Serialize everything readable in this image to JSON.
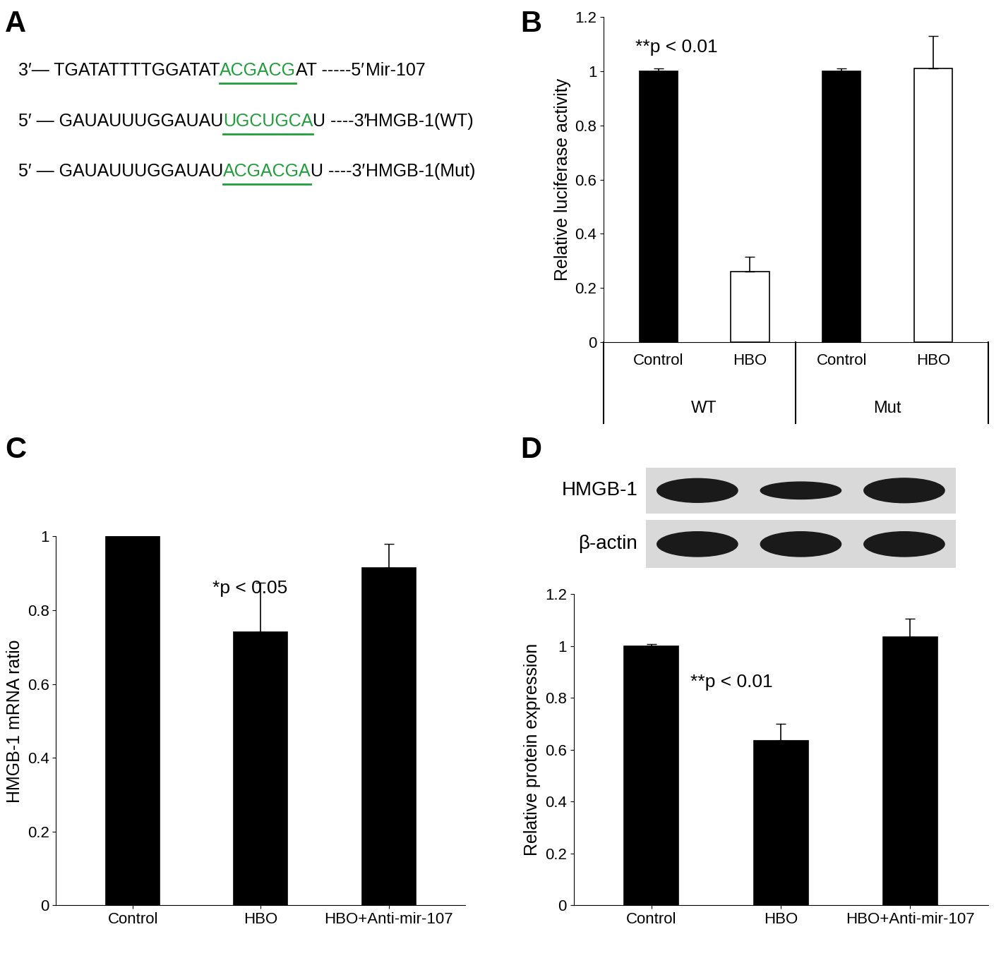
{
  "panel_a": {
    "label": "A",
    "rows": [
      {
        "left": "3′— TGATATTTTGGATAT",
        "match": "ACGACG",
        "right": "AT -----5′",
        "name": "Mir-107"
      },
      {
        "left": "5′ — GAUAUUUGGAUAU",
        "match": "UGCUGCA",
        "right": "U ----3′",
        "name": "HMGB-1(WT)"
      },
      {
        "left": "5′ — GAUAUUUGGAUAU",
        "match": "ACGACGA",
        "right": "U ----3′",
        "name": "HMGB-1(Mut)"
      }
    ],
    "color": "#1f9e3a"
  },
  "chart_data": [
    {
      "panel": "B",
      "type": "bar",
      "categories": [
        "Control",
        "HBO",
        "Control",
        "HBO"
      ],
      "groups": [
        "WT",
        "Mut"
      ],
      "values": [
        1.0,
        0.26,
        1.0,
        1.01
      ],
      "errors": [
        0.01,
        0.055,
        0.01,
        0.12
      ],
      "colors": [
        "#000000",
        "#ffffff",
        "#000000",
        "#ffffff"
      ],
      "ylabel": "Relative luciferase activity",
      "ylim": [
        0,
        1.2
      ],
      "yticks": [
        0,
        0.2,
        0.4,
        0.6,
        0.8,
        1,
        1.2
      ],
      "annotations": [
        "**p < 0.01"
      ]
    },
    {
      "panel": "C",
      "type": "bar",
      "categories": [
        "Control",
        "HBO",
        "HBO+Anti-mir-107"
      ],
      "values": [
        1.0,
        0.74,
        0.915
      ],
      "errors": [
        0.0,
        0.135,
        0.065
      ],
      "color": "#000000",
      "ylabel": "HMGB-1 mRNA ratio",
      "ylim": [
        0,
        1
      ],
      "yticks": [
        0,
        0.2,
        0.4,
        0.6,
        0.8,
        1
      ],
      "annotations": [
        "*p < 0.05"
      ]
    },
    {
      "panel": "D",
      "type": "bar",
      "categories": [
        "Control",
        "HBO",
        "HBO+Anti-mir-107"
      ],
      "values": [
        1.0,
        0.635,
        1.035
      ],
      "errors": [
        0.008,
        0.065,
        0.07
      ],
      "color": "#000000",
      "ylabel": "Relative protein expression",
      "ylim": [
        0,
        1.2
      ],
      "yticks": [
        0,
        0.2,
        0.4,
        0.6,
        0.8,
        1,
        1.2
      ],
      "annotations": [
        "**p < 0.01"
      ],
      "blot": {
        "rows": [
          "HMGB-1",
          "β-actin"
        ]
      }
    }
  ]
}
